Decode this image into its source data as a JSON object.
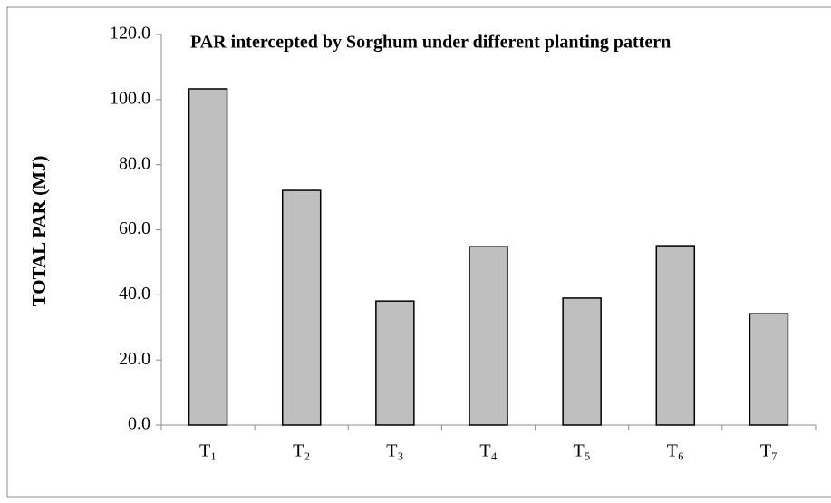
{
  "chart_data": {
    "type": "bar",
    "title": "PAR intercepted by Sorghum under different planting pattern",
    "ylabel": "TOTAL PAR (MJ)",
    "categories": [
      "T₁",
      "T₂",
      "T₃",
      "T₄",
      "T₅",
      "T₆",
      "T₇"
    ],
    "values": [
      103.3,
      72.1,
      38.1,
      54.8,
      39.0,
      55.1,
      34.2
    ],
    "color": "#bfbfbf",
    "ylim": [
      0,
      120
    ],
    "yticks": [
      {
        "value": 0,
        "label": "0.0"
      },
      {
        "value": 20,
        "label": "20.0"
      },
      {
        "value": 40,
        "label": "40.0"
      },
      {
        "value": 60,
        "label": "60.0"
      },
      {
        "value": 80,
        "label": "80.0"
      },
      {
        "value": 100,
        "label": "100.0"
      },
      {
        "value": 120,
        "label": "120.0"
      }
    ],
    "grid": false
  }
}
